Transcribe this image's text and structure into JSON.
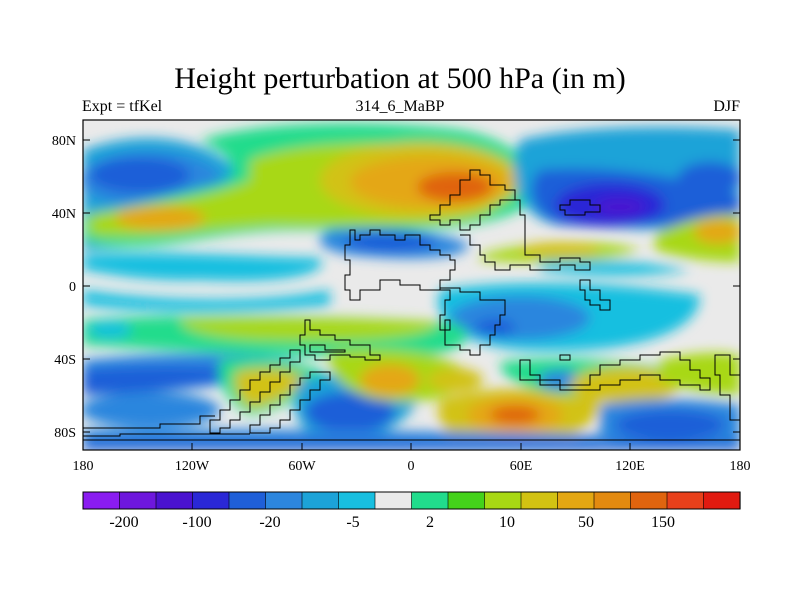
{
  "title": "Height perturbation at 500 hPa (in m)",
  "subtitle_left": "Expt = tfKel",
  "subtitle_center": "314_6_MaBP",
  "subtitle_right": "DJF",
  "y_ticks": [
    "80N",
    "40N",
    "0",
    "40S",
    "80S"
  ],
  "x_ticks": [
    "180",
    "120W",
    "60W",
    "0",
    "60E",
    "120E",
    "180"
  ],
  "colorbar": {
    "colors": [
      "#8a1cf0",
      "#6e17dd",
      "#4a12d0",
      "#2a28d6",
      "#1f5fd8",
      "#2c86de",
      "#1ca3d8",
      "#18bfe0",
      "#eaeaea",
      "#21dc8c",
      "#44d21b",
      "#a8d814",
      "#d2c212",
      "#e4a712",
      "#e38a10",
      "#e0640e",
      "#e8401b",
      "#e11a10"
    ],
    "labels": [
      "-200",
      "-100",
      "-20",
      "-5",
      "2",
      "10",
      "50",
      "150"
    ]
  }
}
